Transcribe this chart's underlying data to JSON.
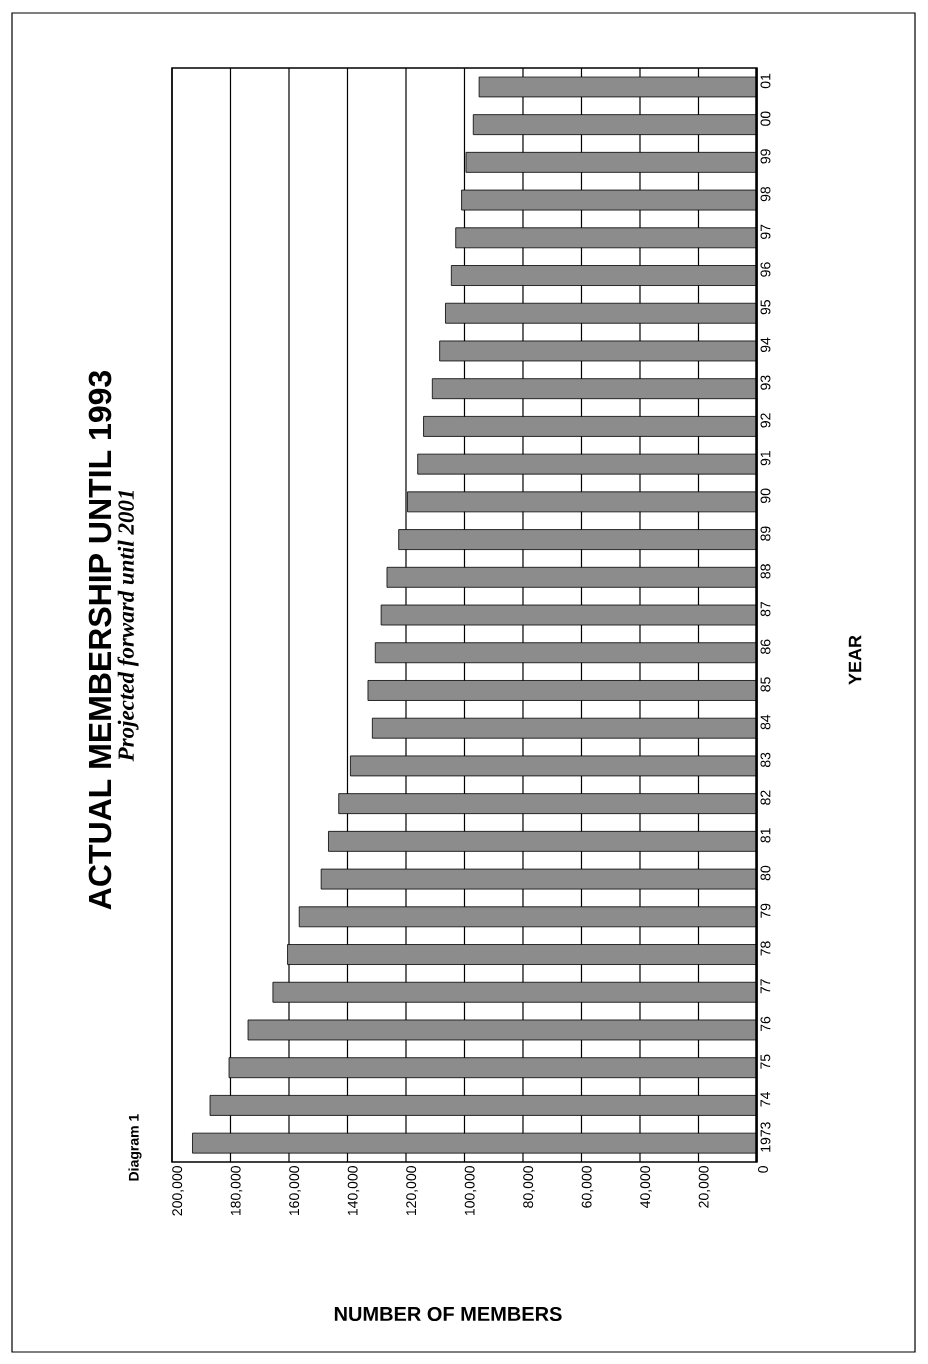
{
  "chart_data": {
    "type": "bar",
    "orientation": "horizontal",
    "title": "ACTUAL MEMBERSHIP UNTIL 1993",
    "subtitle": "Projected forward until 2001",
    "xlabel": "NUMBER OF MEMBERS",
    "ylabel": "YEAR",
    "annotations": [
      "Diagram 1"
    ],
    "categories": [
      "01",
      "00",
      "99",
      "98",
      "97",
      "96",
      "95",
      "94",
      "93",
      "92",
      "91",
      "90",
      "89",
      "88",
      "87",
      "86",
      "85",
      "84",
      "83",
      "82",
      "81",
      "80",
      "79",
      "78",
      "77",
      "76",
      "75",
      "74",
      "1973"
    ],
    "values": [
      95000,
      97000,
      99500,
      101000,
      103000,
      104500,
      106500,
      108500,
      111000,
      114000,
      116000,
      119500,
      122500,
      126500,
      128500,
      130500,
      133000,
      131500,
      139000,
      143000,
      146500,
      149000,
      156500,
      160500,
      165500,
      174000,
      180500,
      187000,
      193000
    ],
    "color": "#8c8c8c",
    "xlim": [
      200000,
      0
    ],
    "xticks": [
      {
        "value": 0,
        "label": "0"
      },
      {
        "value": 20000,
        "label": "20,000"
      },
      {
        "value": 40000,
        "label": "40,000"
      },
      {
        "value": 60000,
        "label": "60,000"
      },
      {
        "value": 80000,
        "label": "80,000"
      },
      {
        "value": 100000,
        "label": "100,000"
      },
      {
        "value": 120000,
        "label": "120,000"
      },
      {
        "value": 140000,
        "label": "140,000"
      },
      {
        "value": 160000,
        "label": "160,000"
      },
      {
        "value": 180000,
        "label": "180,000"
      },
      {
        "value": 200000,
        "label": "200,000"
      }
    ],
    "grid": "x"
  }
}
